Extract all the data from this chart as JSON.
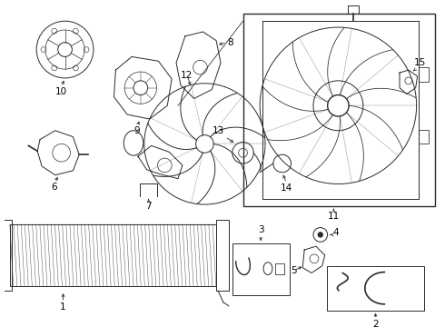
{
  "bg_color": "#ffffff",
  "line_color": "#2a2a2a",
  "text_color": "#000000",
  "fig_width": 4.9,
  "fig_height": 3.6,
  "dpi": 100
}
